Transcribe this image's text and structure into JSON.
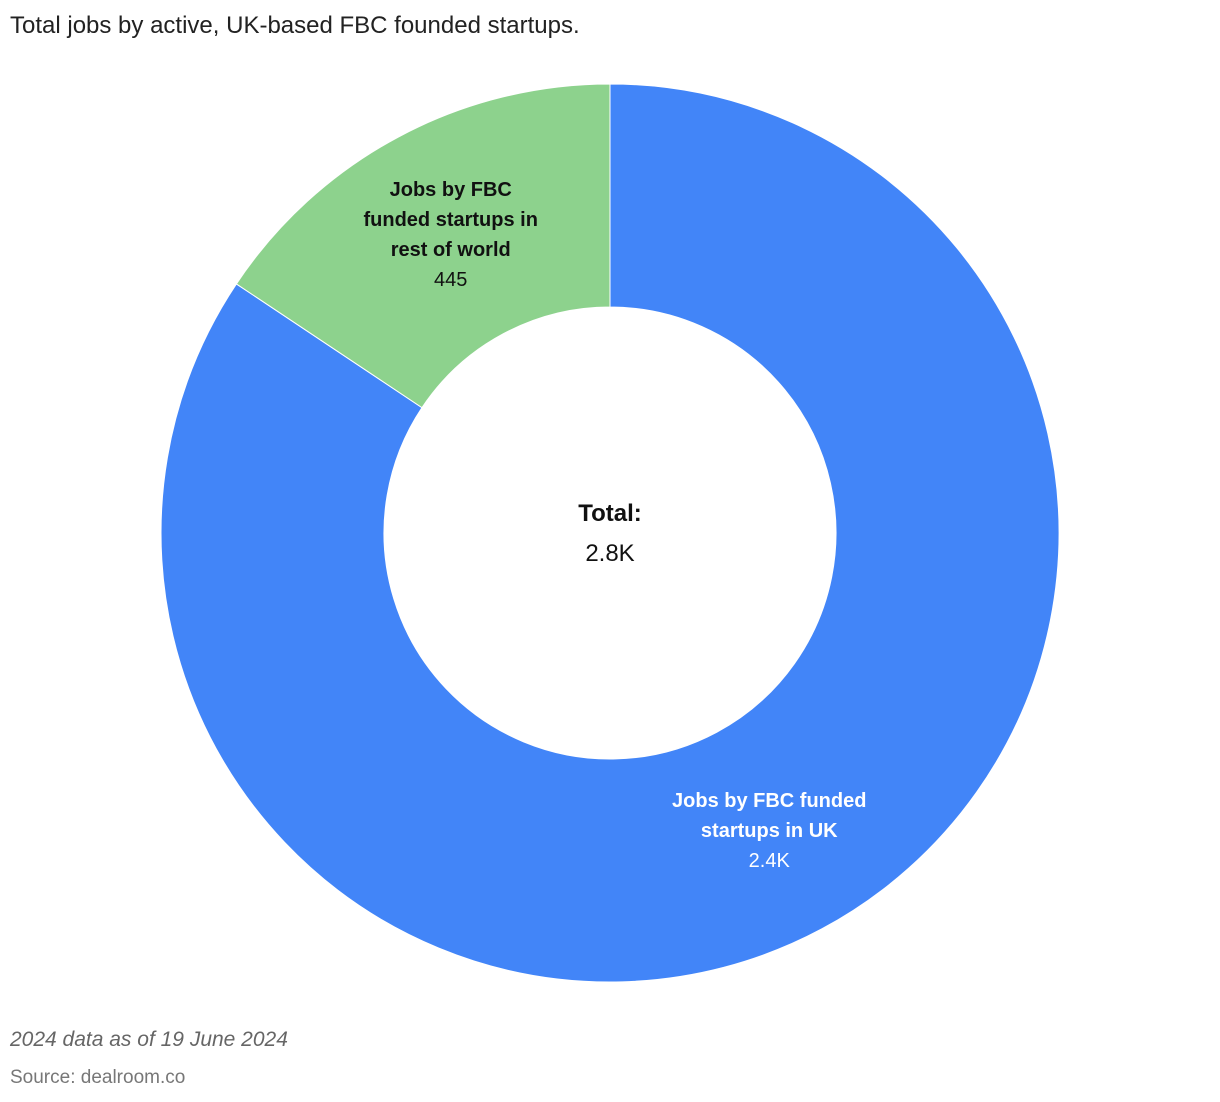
{
  "chart_data": {
    "type": "donut",
    "title": "Total jobs by active, UK-based FBC founded startups.",
    "categories": [
      "Jobs by FBC funded startups in UK",
      "Jobs by FBC funded startups in rest of world"
    ],
    "values": [
      2400,
      445
    ],
    "value_labels": [
      "2.4K",
      "445"
    ],
    "colors": [
      "#4285f8",
      "#8dd28d"
    ],
    "label_colors": [
      "#ffffff",
      "#111111"
    ],
    "center_title": "Total:",
    "total": 2800,
    "total_label": "2.8K",
    "note": "2024 data as of 19 June 2024",
    "source": "Source: dealroom.co"
  }
}
